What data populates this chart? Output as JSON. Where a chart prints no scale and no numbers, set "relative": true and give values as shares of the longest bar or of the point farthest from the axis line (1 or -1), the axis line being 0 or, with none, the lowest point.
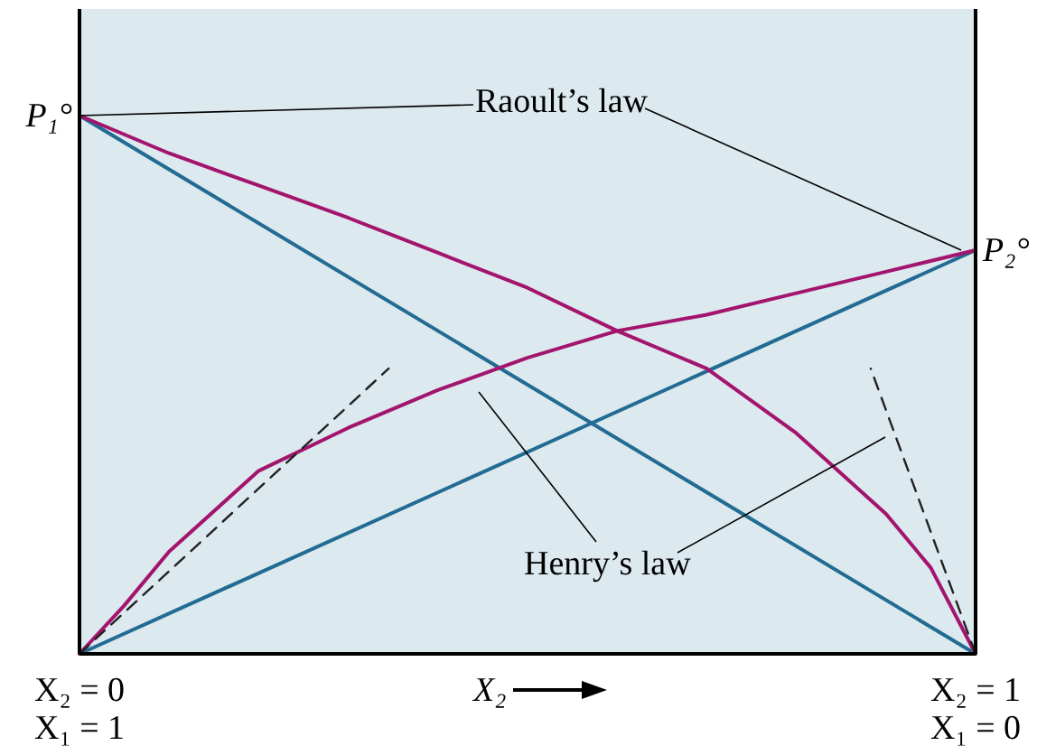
{
  "chart_data": {
    "type": "line",
    "relative": true,
    "xlabel": "X₂",
    "xlim": [
      0,
      1
    ],
    "xticks": [
      {
        "value": 0,
        "label": "X₂ = 0"
      },
      {
        "value": 1,
        "label": "X₂ = 1"
      }
    ],
    "series": [
      {
        "color": "#226b92",
        "x": [
          0,
          1
        ],
        "values": [
          1,
          0
        ]
      },
      {
        "color": "#226b92",
        "x": [
          0,
          1
        ],
        "values": [
          0,
          0.75
        ]
      },
      {
        "color": "#a3146e",
        "x": [
          0,
          0.1,
          0.2,
          0.3,
          0.4,
          0.5,
          0.6,
          0.7,
          0.8,
          0.9,
          0.95,
          1
        ],
        "values": [
          1,
          0.93,
          0.87,
          0.81,
          0.745,
          0.68,
          0.6,
          0.53,
          0.41,
          0.26,
          0.16,
          0
        ]
      },
      {
        "color": "#a3146e",
        "x": [
          0,
          0.05,
          0.1,
          0.2,
          0.3,
          0.4,
          0.5,
          0.6,
          0.7,
          0.8,
          0.9,
          1
        ],
        "values": [
          0,
          0.09,
          0.19,
          0.34,
          0.42,
          0.49,
          0.55,
          0.6,
          0.63,
          0.67,
          0.71,
          0.75
        ]
      },
      {
        "color": "#222222",
        "line_style": "dashed",
        "x": [
          0,
          0.345
        ],
        "values": [
          0,
          0.53
        ]
      },
      {
        "color": "#222222",
        "line_style": "dashed",
        "x": [
          1,
          0.883
        ],
        "values": [
          0,
          0.53
        ]
      }
    ],
    "annotations": [
      "Raoult’s law",
      "Henry’s law",
      "X₁ = 1",
      "X₁ = 0",
      {
        "text": "P₁°",
        "x": 0,
        "y": 1
      },
      {
        "text": "P₂°",
        "x": 1,
        "y": 0.75
      }
    ]
  }
}
